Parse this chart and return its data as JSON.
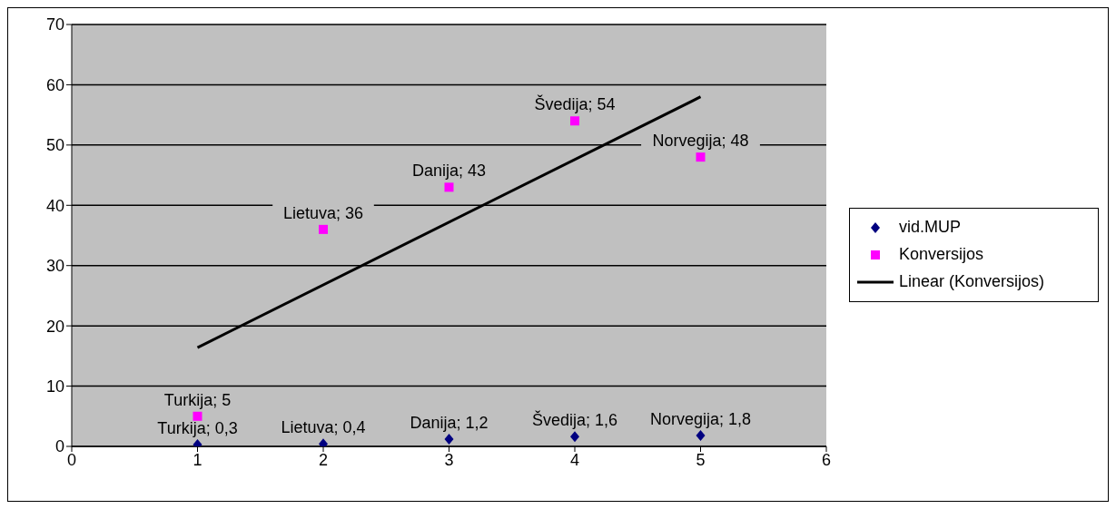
{
  "chart_data": {
    "type": "scatter",
    "xlim": [
      0,
      6
    ],
    "xticks": [
      0,
      1,
      2,
      3,
      4,
      5,
      6
    ],
    "ylim": [
      0,
      70
    ],
    "yticks": [
      0,
      10,
      20,
      30,
      40,
      50,
      60,
      70
    ],
    "grid": "y",
    "legend": "right",
    "series": [
      {
        "name": "vid.MUP",
        "color": "#000080",
        "marker": "diamond",
        "x": [
          1,
          2,
          3,
          4,
          5
        ],
        "values": [
          0.3,
          0.4,
          1.2,
          1.6,
          1.8
        ],
        "value_labels": [
          "Turkija; 0,3",
          "Lietuva; 0,4",
          "Danija; 1,2",
          "Švedija; 1,6",
          "Norvegija; 1,8"
        ]
      },
      {
        "name": "Konversijos",
        "color": "#ff00ff",
        "marker": "square",
        "x": [
          1,
          2,
          3,
          4,
          5
        ],
        "values": [
          5,
          36,
          43,
          54,
          48
        ],
        "value_labels": [
          "Turkija; 5",
          "Lietuva; 36",
          "Danija; 43",
          "Švedija; 54",
          "Norvegija; 48"
        ]
      },
      {
        "name": "Linear (Konversijos)",
        "type": "line",
        "color": "#000000",
        "marker": "none",
        "x": [
          1,
          5
        ],
        "values": [
          16.4,
          58
        ]
      }
    ]
  }
}
